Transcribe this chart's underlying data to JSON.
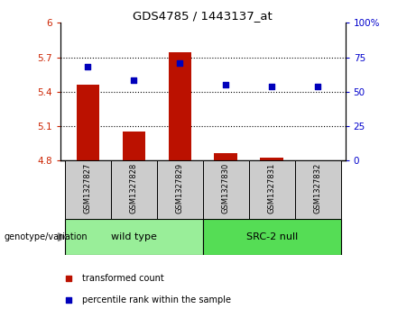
{
  "title": "GDS4785 / 1443137_at",
  "samples": [
    "GSM1327827",
    "GSM1327828",
    "GSM1327829",
    "GSM1327830",
    "GSM1327831",
    "GSM1327832"
  ],
  "bar_values": [
    5.46,
    5.05,
    5.74,
    4.86,
    4.82,
    4.8
  ],
  "dot_values_pct": [
    68,
    58,
    71,
    55,
    54,
    54
  ],
  "ymin": 4.8,
  "ymax": 6.0,
  "yticks": [
    4.8,
    5.1,
    5.4,
    5.7,
    6.0
  ],
  "ytick_labels": [
    "4.8",
    "5.1",
    "5.4",
    "5.7",
    "6"
  ],
  "y2min": 0,
  "y2max": 100,
  "y2ticks": [
    0,
    25,
    50,
    75,
    100
  ],
  "y2tick_labels": [
    "0",
    "25",
    "50",
    "75",
    "100%"
  ],
  "bar_color": "#bb1100",
  "dot_color": "#0000bb",
  "wild_type_label": "wild type",
  "src2_null_label": "SRC-2 null",
  "group_bg_color_wt": "#99ee99",
  "group_bg_color_src2": "#55dd55",
  "sample_bg_color": "#cccccc",
  "genotype_label": "genotype/variation",
  "legend_bar_label": "transformed count",
  "legend_dot_label": "percentile rank within the sample",
  "title_color": "#000000",
  "left_tick_color": "#cc2200",
  "right_tick_color": "#0000cc",
  "gridline_ticks": [
    5.1,
    5.4,
    5.7
  ],
  "n_samples": 6,
  "n_wild": 3,
  "n_src2": 3
}
